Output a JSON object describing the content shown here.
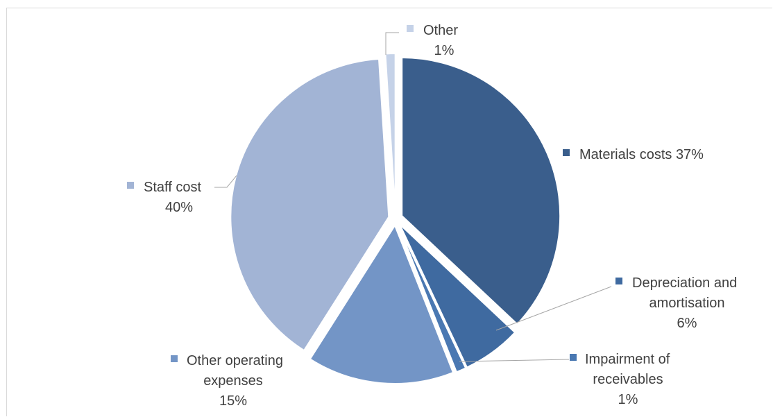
{
  "chart_data": {
    "type": "pie",
    "title": "",
    "slices": [
      {
        "name": "Materials costs",
        "value": 37,
        "label": "37%",
        "color": "#3a5e8c"
      },
      {
        "name": "Depreciation and amortisation",
        "value": 6,
        "label": "6%",
        "color": "#3f6aa0"
      },
      {
        "name": "Impairment of receivables",
        "value": 1,
        "label": "1%",
        "color": "#4a78b2"
      },
      {
        "name": "Other operating expenses",
        "value": 15,
        "label": "15%",
        "color": "#7395c6"
      },
      {
        "name": "Staff cost",
        "value": 40,
        "label": "40%",
        "color": "#a2b4d5"
      },
      {
        "name": "Other",
        "value": 1,
        "label": "1%",
        "color": "#c5d2e8"
      }
    ],
    "legend": "none",
    "data_labels": "outside"
  },
  "labels": {
    "materials": {
      "name": "Materials costs",
      "pct": "37%"
    },
    "depreciation": {
      "line1": "Depreciation and",
      "line2": "amortisation",
      "pct": "6%"
    },
    "impairment": {
      "line1": "Impairment of",
      "line2": "receivables",
      "pct": "1%"
    },
    "other_operating": {
      "line1": "Other operating",
      "line2": "expenses",
      "pct": "15%"
    },
    "staff": {
      "name": "Staff cost",
      "pct": "40%"
    },
    "other": {
      "name": "Other",
      "pct": "1%"
    }
  }
}
